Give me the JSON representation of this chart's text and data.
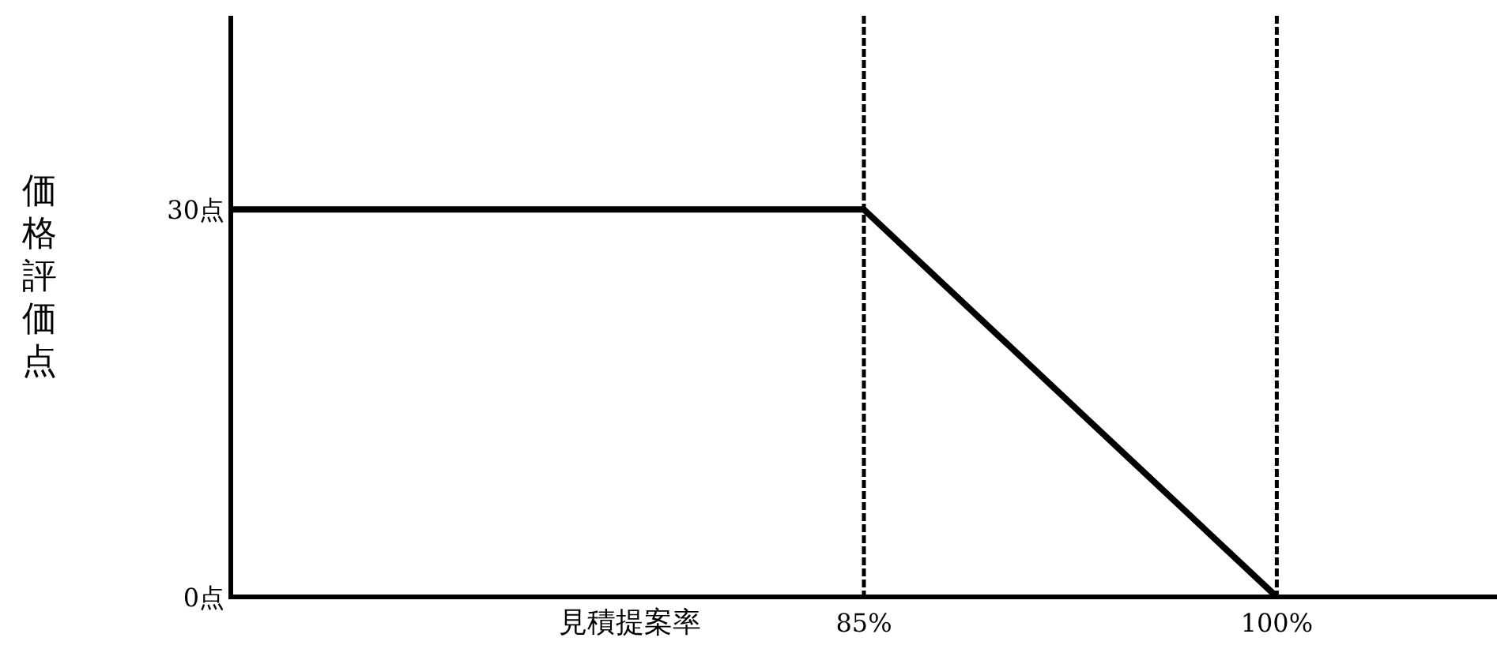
{
  "chart_data": {
    "type": "line",
    "xlabel": "見積提案率",
    "ylabel": "価格評価点",
    "x": [
      62,
      85,
      100
    ],
    "series": [
      {
        "color": "#000000",
        "values": [
          30,
          30,
          0
        ]
      }
    ],
    "xlim": [
      62,
      108
    ],
    "ylim": [
      0,
      45
    ],
    "xticks": [
      {
        "value": 85,
        "label": "85%"
      },
      {
        "value": 100,
        "label": "100%"
      }
    ],
    "yticks": [
      {
        "value": 0,
        "label": "0点"
      },
      {
        "value": 30,
        "label": "30点"
      }
    ],
    "ref_lines": [
      {
        "axis": "x",
        "value": 85,
        "color": "#000000",
        "line_style": "dashed"
      },
      {
        "axis": "x",
        "value": 100,
        "color": "#000000",
        "line_style": "dashed"
      }
    ],
    "grid": false,
    "marker": "none",
    "line_style": "solid"
  }
}
